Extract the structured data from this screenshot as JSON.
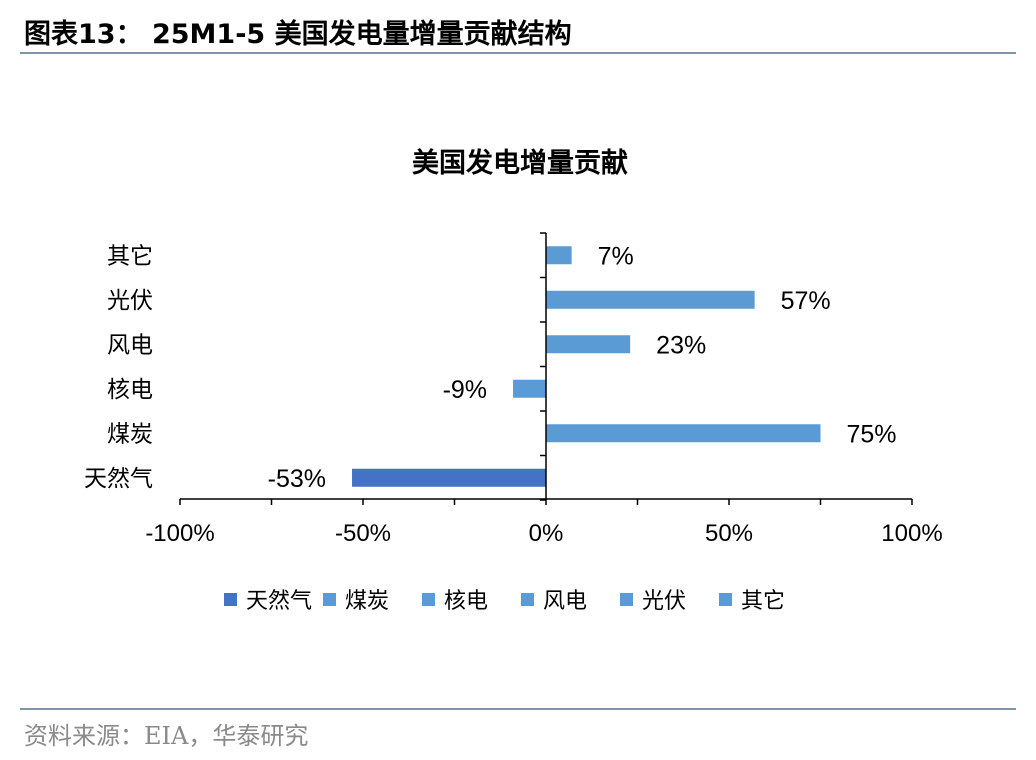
{
  "figure": {
    "title": "图表13： 25M1-5 美国发电量增量贡献结构",
    "source": "资料来源：EIA，华泰研究"
  },
  "colors": {
    "primary": "#4472c4",
    "secondary": "#5b9bd5",
    "axis": "#000000",
    "rule": "#7f93ad"
  },
  "chart_data": {
    "type": "bar",
    "orientation": "horizontal",
    "title": "美国发电增量贡献",
    "categories": [
      "天然气",
      "煤炭",
      "核电",
      "风电",
      "光伏",
      "其它"
    ],
    "values": [
      -53,
      75,
      -9,
      23,
      57,
      7
    ],
    "data_labels": [
      "-53%",
      "75%",
      "-9%",
      "23%",
      "57%",
      "7%"
    ],
    "xlim": [
      -100,
      100
    ],
    "x_ticks": [
      -100,
      -50,
      0,
      50,
      100
    ],
    "x_tick_labels": [
      "-100%",
      "-50%",
      "0%",
      "50%",
      "100%"
    ],
    "grid": false,
    "legend_position": "bottom",
    "legend": [
      "天然气",
      "煤炭",
      "核电",
      "风电",
      "光伏",
      "其它"
    ],
    "bar_colors": [
      "#4472c4",
      "#5b9bd5",
      "#5b9bd5",
      "#5b9bd5",
      "#5b9bd5",
      "#5b9bd5"
    ]
  }
}
